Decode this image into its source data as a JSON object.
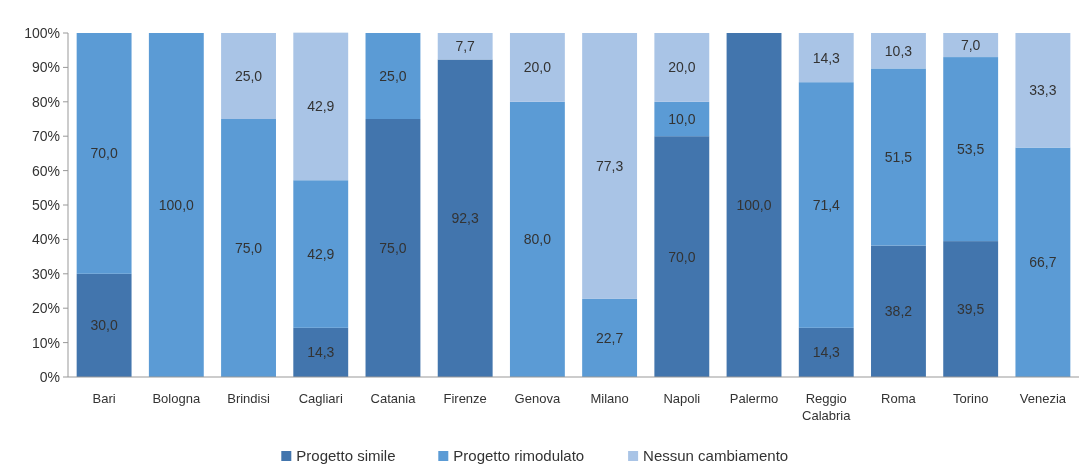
{
  "chart_data": {
    "type": "bar",
    "stacked": true,
    "legend": "bottom",
    "categories": [
      "Bari",
      "Bologna",
      "Brindisi",
      "Cagliari",
      "Catania",
      "Firenze",
      "Genova",
      "Milano",
      "Napoli",
      "Palermo",
      "Reggio Calabria",
      "Roma",
      "Torino",
      "Venezia"
    ],
    "ylim": [
      0,
      100
    ],
    "yticks": [
      {
        "value": 0,
        "label": "0%"
      },
      {
        "value": 10,
        "label": "10%"
      },
      {
        "value": 20,
        "label": "20%"
      },
      {
        "value": 30,
        "label": "30%"
      },
      {
        "value": 40,
        "label": "40%"
      },
      {
        "value": 50,
        "label": "50%"
      },
      {
        "value": 60,
        "label": "60%"
      },
      {
        "value": 70,
        "label": "70%"
      },
      {
        "value": 80,
        "label": "80%"
      },
      {
        "value": 90,
        "label": "90%"
      },
      {
        "value": 100,
        "label": "100%"
      }
    ],
    "series": [
      {
        "name": "Progetto simile",
        "color": "#4275ad",
        "values": [
          30.0,
          0,
          0,
          14.3,
          75.0,
          92.3,
          0,
          0,
          70.0,
          100.0,
          14.3,
          38.2,
          39.5,
          0
        ],
        "value_labels": [
          "30,0",
          null,
          null,
          "14,3",
          "75,0",
          "92,3",
          null,
          null,
          "70,0",
          "100,0",
          "14,3",
          "38,2",
          "39,5",
          null
        ]
      },
      {
        "name": "Progetto rimodulato",
        "color": "#5b9bd5",
        "values": [
          70.0,
          100.0,
          75.0,
          42.9,
          25.0,
          0,
          80.0,
          22.7,
          10.0,
          0,
          71.4,
          51.5,
          53.5,
          66.7
        ],
        "value_labels": [
          "70,0",
          "100,0",
          "75,0",
          "42,9",
          "25,0",
          null,
          "80,0",
          "22,7",
          "10,0",
          null,
          "71,4",
          "51,5",
          "53,5",
          "66,7"
        ]
      },
      {
        "name": "Nessun cambiamento",
        "color": "#a9c4e6",
        "values": [
          0,
          0,
          25.0,
          42.9,
          0,
          7.7,
          20.0,
          77.3,
          20.0,
          0,
          14.3,
          10.3,
          7.0,
          33.3
        ],
        "value_labels": [
          null,
          null,
          "25,0",
          "42,9",
          null,
          "7,7",
          "20,0",
          "77,3",
          "20,0",
          null,
          "14,3",
          "10,3",
          "7,0",
          "33,3"
        ]
      }
    ]
  }
}
